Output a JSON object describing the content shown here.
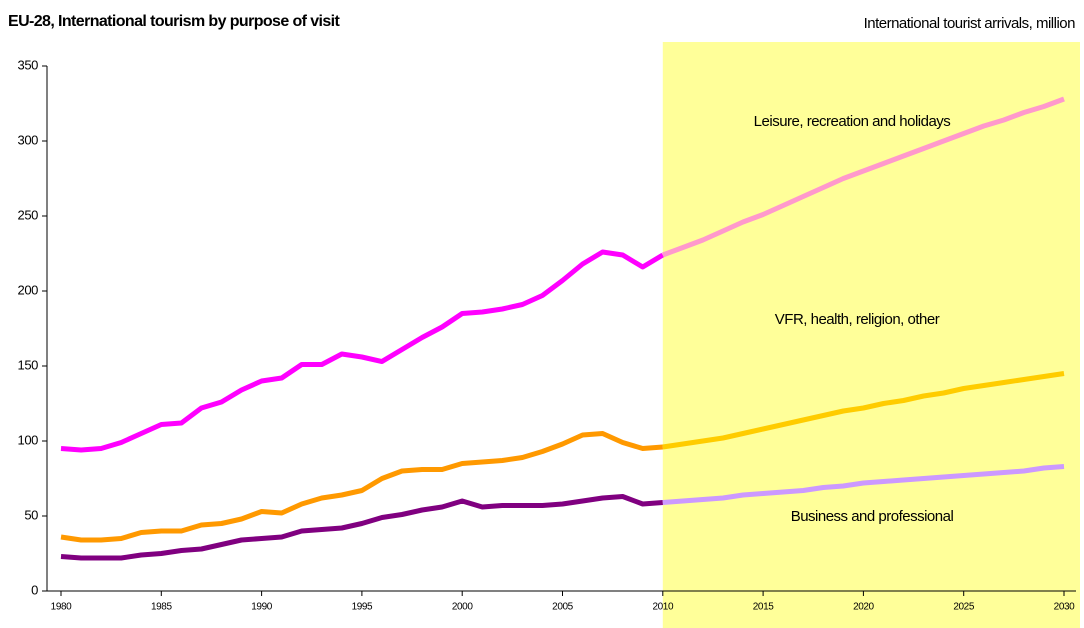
{
  "chart_data": {
    "type": "line",
    "title": "EU-28, International tourism by purpose of visit",
    "subtitle": "International tourist arrivals, million",
    "x": [
      1980,
      1981,
      1982,
      1983,
      1984,
      1985,
      1986,
      1987,
      1988,
      1989,
      1990,
      1991,
      1992,
      1993,
      1994,
      1995,
      1996,
      1997,
      1998,
      1999,
      2000,
      2001,
      2002,
      2003,
      2004,
      2005,
      2006,
      2007,
      2008,
      2009,
      2010,
      2011,
      2012,
      2013,
      2014,
      2015,
      2016,
      2017,
      2018,
      2019,
      2020,
      2021,
      2022,
      2023,
      2024,
      2025,
      2026,
      2027,
      2028,
      2029,
      2030
    ],
    "forecast_from": 2010,
    "forecast_shade_color": "#ffff99",
    "series": [
      {
        "name": "Leisure, recreation and holidays",
        "color": "#ff00ff",
        "forecast_color": "#ff99cc",
        "values": [
          95,
          94,
          95,
          99,
          105,
          111,
          112,
          122,
          126,
          134,
          140,
          142,
          151,
          151,
          158,
          156,
          153,
          161,
          169,
          176,
          185,
          186,
          188,
          191,
          197,
          207,
          218,
          226,
          224,
          216,
          224,
          229,
          234,
          240,
          246,
          251,
          257,
          263,
          269,
          275,
          280,
          285,
          290,
          295,
          300,
          305,
          310,
          314,
          319,
          323,
          328
        ]
      },
      {
        "name": "VFR, health, religion, other",
        "color": "#ff9900",
        "forecast_color": "#ffcc00",
        "values": [
          36,
          34,
          34,
          35,
          39,
          40,
          40,
          44,
          45,
          48,
          53,
          52,
          58,
          62,
          64,
          67,
          75,
          80,
          81,
          81,
          85,
          86,
          87,
          89,
          93,
          98,
          104,
          105,
          99,
          95,
          96,
          98,
          100,
          102,
          105,
          108,
          111,
          114,
          117,
          120,
          122,
          125,
          127,
          130,
          132,
          135,
          137,
          139,
          141,
          143,
          145
        ]
      },
      {
        "name": "Business and professional",
        "color": "#800080",
        "forecast_color": "#cc99ff",
        "values": [
          23,
          22,
          22,
          22,
          24,
          25,
          27,
          28,
          31,
          34,
          35,
          36,
          40,
          41,
          42,
          45,
          49,
          51,
          54,
          56,
          60,
          56,
          57,
          57,
          57,
          58,
          60,
          62,
          63,
          58,
          59,
          60,
          61,
          62,
          64,
          65,
          66,
          67,
          69,
          70,
          72,
          73,
          74,
          75,
          76,
          77,
          78,
          79,
          80,
          82,
          83
        ]
      }
    ],
    "xlim": [
      1980,
      2030
    ],
    "xticks": [
      1980,
      1985,
      1990,
      1995,
      2000,
      2005,
      2010,
      2015,
      2020,
      2025,
      2030
    ],
    "ylim": [
      0,
      350
    ],
    "yticks": [
      0,
      50,
      100,
      150,
      200,
      250,
      300,
      350
    ]
  }
}
